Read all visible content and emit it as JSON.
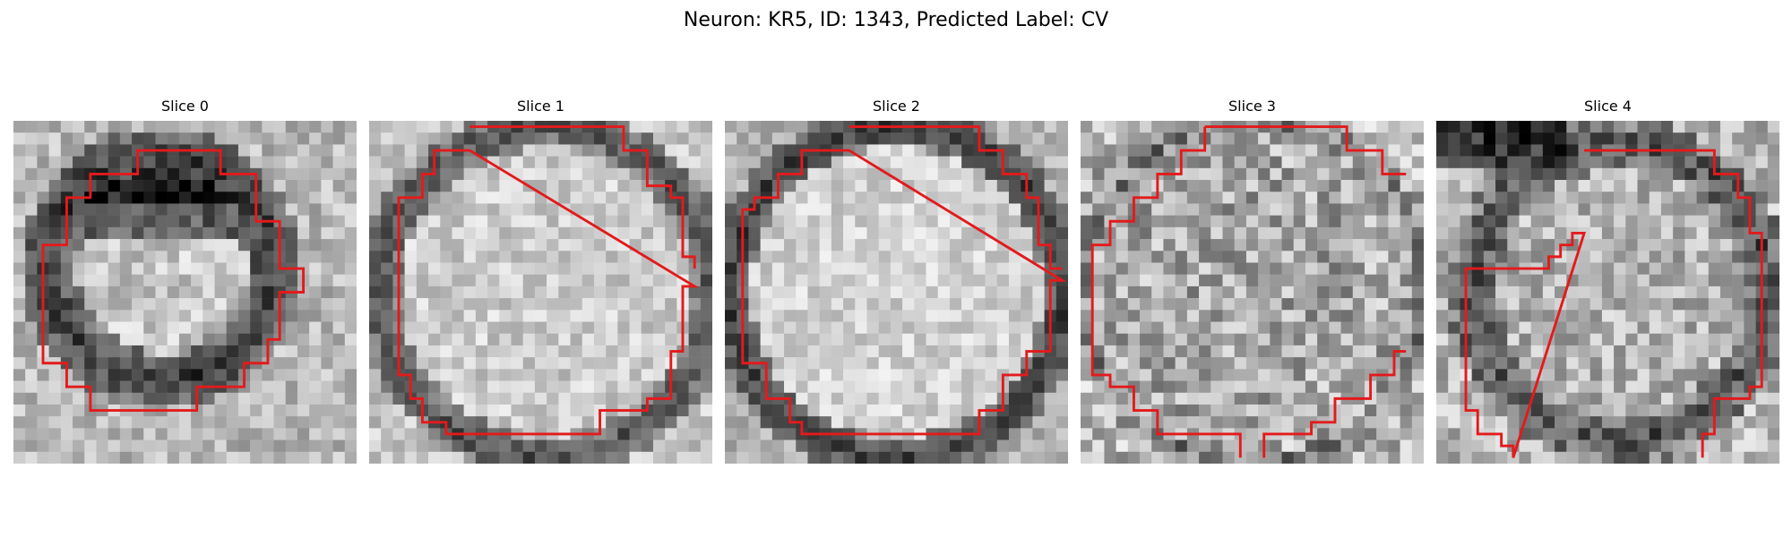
{
  "figure": {
    "title": "Neuron: KR5, ID: 1343, Predicted Label: CV"
  },
  "panels": [
    {
      "title": "Slice 0"
    },
    {
      "title": "Slice 1"
    },
    {
      "title": "Slice 2"
    },
    {
      "title": "Slice 3"
    },
    {
      "title": "Slice 4"
    }
  ],
  "colors": {
    "contour": "#e31a1c",
    "colormap": "gray"
  }
}
